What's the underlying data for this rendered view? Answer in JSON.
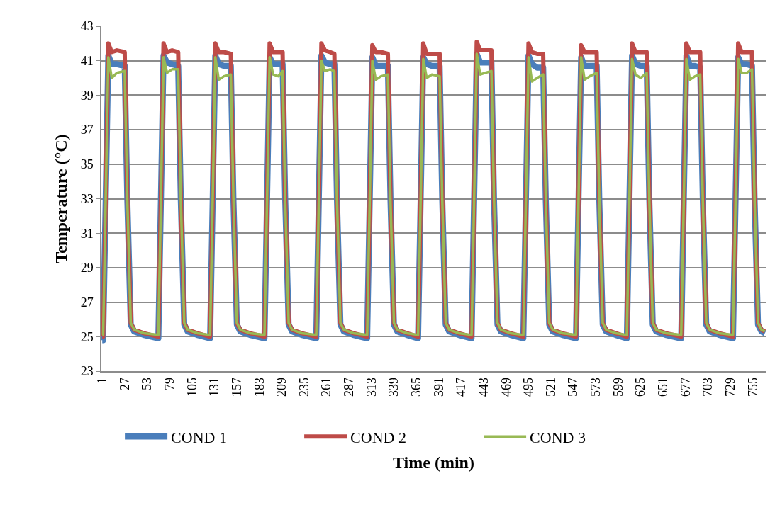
{
  "chart_data": {
    "type": "line",
    "xlabel": "Time (min)",
    "ylabel": "Temperature (°C)",
    "x": [
      1,
      2,
      5,
      8,
      12,
      18,
      27,
      30,
      34,
      38,
      49,
      66,
      69,
      72,
      76,
      82,
      89,
      92,
      96,
      100,
      111,
      126,
      129,
      132,
      136,
      142,
      150,
      153,
      157,
      161,
      172,
      189,
      192,
      195,
      199,
      205,
      210,
      213,
      217,
      221,
      232,
      249,
      252,
      255,
      259,
      265,
      270,
      273,
      277,
      281,
      292,
      308,
      311,
      314,
      318,
      324,
      332,
      335,
      339,
      343,
      354,
      367,
      370,
      373,
      377,
      383,
      392,
      395,
      399,
      403,
      414,
      429,
      432,
      435,
      439,
      445,
      452,
      455,
      459,
      463,
      474,
      489,
      492,
      495,
      499,
      505,
      512,
      515,
      519,
      523,
      534,
      550,
      553,
      556,
      560,
      566,
      574,
      577,
      581,
      585,
      596,
      609,
      612,
      615,
      619,
      625,
      632,
      635,
      639,
      643,
      654,
      672,
      675,
      678,
      682,
      688,
      694,
      697,
      701,
      705,
      716,
      732,
      735,
      738,
      742,
      748,
      754,
      757,
      761,
      765,
      769
    ],
    "series": [
      {
        "name": "COND 1",
        "color": "#4a7ebb",
        "values": [
          24.8,
          24.8,
          33,
          41.3,
          40.8,
          40.8,
          40.7,
          33,
          25.7,
          25.3,
          25.1,
          24.9,
          33,
          41.3,
          40.9,
          40.8,
          40.7,
          33,
          25.7,
          25.3,
          25.1,
          24.9,
          33,
          41.3,
          40.8,
          40.7,
          40.7,
          33,
          25.7,
          25.3,
          25.1,
          24.9,
          33,
          41.2,
          40.8,
          40.8,
          40.8,
          33,
          25.7,
          25.3,
          25.1,
          24.9,
          33,
          41.3,
          40.9,
          40.8,
          40.8,
          33,
          25.7,
          25.3,
          25.1,
          24.9,
          33,
          41.2,
          40.7,
          40.7,
          40.7,
          33,
          25.7,
          25.3,
          25.1,
          24.9,
          33,
          41.2,
          40.8,
          40.7,
          40.7,
          33,
          25.7,
          25.3,
          25.1,
          24.9,
          33,
          41.4,
          40.9,
          40.9,
          40.9,
          33,
          25.7,
          25.3,
          25.1,
          24.9,
          33,
          41.3,
          40.8,
          40.6,
          40.6,
          33,
          25.7,
          25.3,
          25.1,
          24.9,
          33,
          41.2,
          40.7,
          40.7,
          40.7,
          33,
          25.7,
          25.3,
          25.1,
          24.9,
          33,
          41.3,
          40.8,
          40.7,
          40.7,
          33,
          25.7,
          25.3,
          25.1,
          24.9,
          33,
          41.3,
          40.7,
          40.7,
          40.6,
          33,
          25.7,
          25.3,
          25.1,
          24.9,
          33,
          41.2,
          40.8,
          40.8,
          40.7,
          33,
          25.7,
          25.3,
          25.2
        ]
      },
      {
        "name": "COND 2",
        "color": "#be4b48",
        "values": [
          25.0,
          25.0,
          33,
          42.0,
          41.5,
          41.6,
          41.5,
          33,
          25.8,
          25.4,
          25.2,
          25.0,
          33,
          42.0,
          41.5,
          41.6,
          41.5,
          33,
          25.8,
          25.4,
          25.2,
          25.0,
          33,
          42.0,
          41.5,
          41.5,
          41.4,
          33,
          25.8,
          25.4,
          25.2,
          25.0,
          33,
          42.0,
          41.5,
          41.5,
          41.5,
          33,
          25.8,
          25.4,
          25.2,
          25.0,
          33,
          42.0,
          41.6,
          41.5,
          41.4,
          33,
          25.8,
          25.4,
          25.2,
          25.0,
          33,
          41.9,
          41.5,
          41.5,
          41.4,
          33,
          25.8,
          25.4,
          25.2,
          25.0,
          33,
          42.0,
          41.4,
          41.4,
          41.4,
          33,
          25.8,
          25.4,
          25.2,
          25.0,
          33,
          42.1,
          41.6,
          41.6,
          41.6,
          33,
          25.8,
          25.4,
          25.2,
          25.0,
          33,
          42.0,
          41.5,
          41.4,
          41.4,
          33,
          25.8,
          25.4,
          25.2,
          25.0,
          33,
          41.9,
          41.5,
          41.5,
          41.5,
          33,
          25.8,
          25.4,
          25.2,
          25.0,
          33,
          42.0,
          41.5,
          41.5,
          41.5,
          33,
          25.8,
          25.4,
          25.2,
          25.0,
          33,
          42.0,
          41.5,
          41.5,
          41.5,
          33,
          25.8,
          25.4,
          25.2,
          25.0,
          33,
          42.0,
          41.5,
          41.5,
          41.5,
          33,
          25.8,
          25.4,
          25.3
        ]
      },
      {
        "name": "COND 3",
        "color": "#98b954",
        "values": [
          25.1,
          25.1,
          33,
          41.2,
          40.0,
          40.3,
          40.4,
          33,
          25.8,
          25.4,
          25.2,
          25.1,
          33,
          41.2,
          40.3,
          40.5,
          40.5,
          33,
          25.8,
          25.4,
          25.2,
          25.1,
          33,
          41.2,
          39.9,
          40.1,
          40.2,
          33,
          25.8,
          25.4,
          25.2,
          25.1,
          33,
          41.2,
          40.2,
          40.1,
          40.4,
          33,
          25.8,
          25.4,
          25.2,
          25.1,
          33,
          41.0,
          40.4,
          40.5,
          40.4,
          33,
          25.8,
          25.4,
          25.2,
          25.1,
          33,
          41.0,
          39.9,
          40.1,
          40.2,
          33,
          25.8,
          25.4,
          25.2,
          25.1,
          33,
          41.1,
          40.0,
          40.2,
          40.1,
          33,
          25.8,
          25.4,
          25.2,
          25.1,
          33,
          41.4,
          40.2,
          40.3,
          40.4,
          33,
          25.8,
          25.4,
          25.2,
          25.1,
          33,
          41.2,
          39.8,
          40.0,
          40.2,
          33,
          25.8,
          25.4,
          25.2,
          25.1,
          33,
          41.2,
          39.9,
          40.1,
          40.3,
          33,
          25.8,
          25.4,
          25.2,
          25.1,
          33,
          41.1,
          40.2,
          40.0,
          40.3,
          33,
          25.8,
          25.4,
          25.2,
          25.1,
          33,
          41.1,
          39.9,
          40.1,
          40.2,
          33,
          25.8,
          25.4,
          25.2,
          25.1,
          33,
          41.1,
          40.3,
          40.3,
          40.5,
          33,
          25.8,
          25.4,
          25.3
        ]
      }
    ],
    "xlim": [
      0,
      770
    ],
    "xticks": [
      1,
      27,
      53,
      79,
      105,
      131,
      157,
      183,
      209,
      235,
      261,
      287,
      313,
      339,
      365,
      391,
      417,
      443,
      469,
      495,
      521,
      547,
      573,
      599,
      625,
      651,
      677,
      703,
      729,
      755
    ],
    "ylim": [
      23,
      43
    ],
    "yticks": [
      23,
      25,
      27,
      29,
      31,
      33,
      35,
      37,
      39,
      41,
      43
    ],
    "grid": "y",
    "legend": "bottom",
    "marker": "none",
    "line_style": "solid"
  }
}
